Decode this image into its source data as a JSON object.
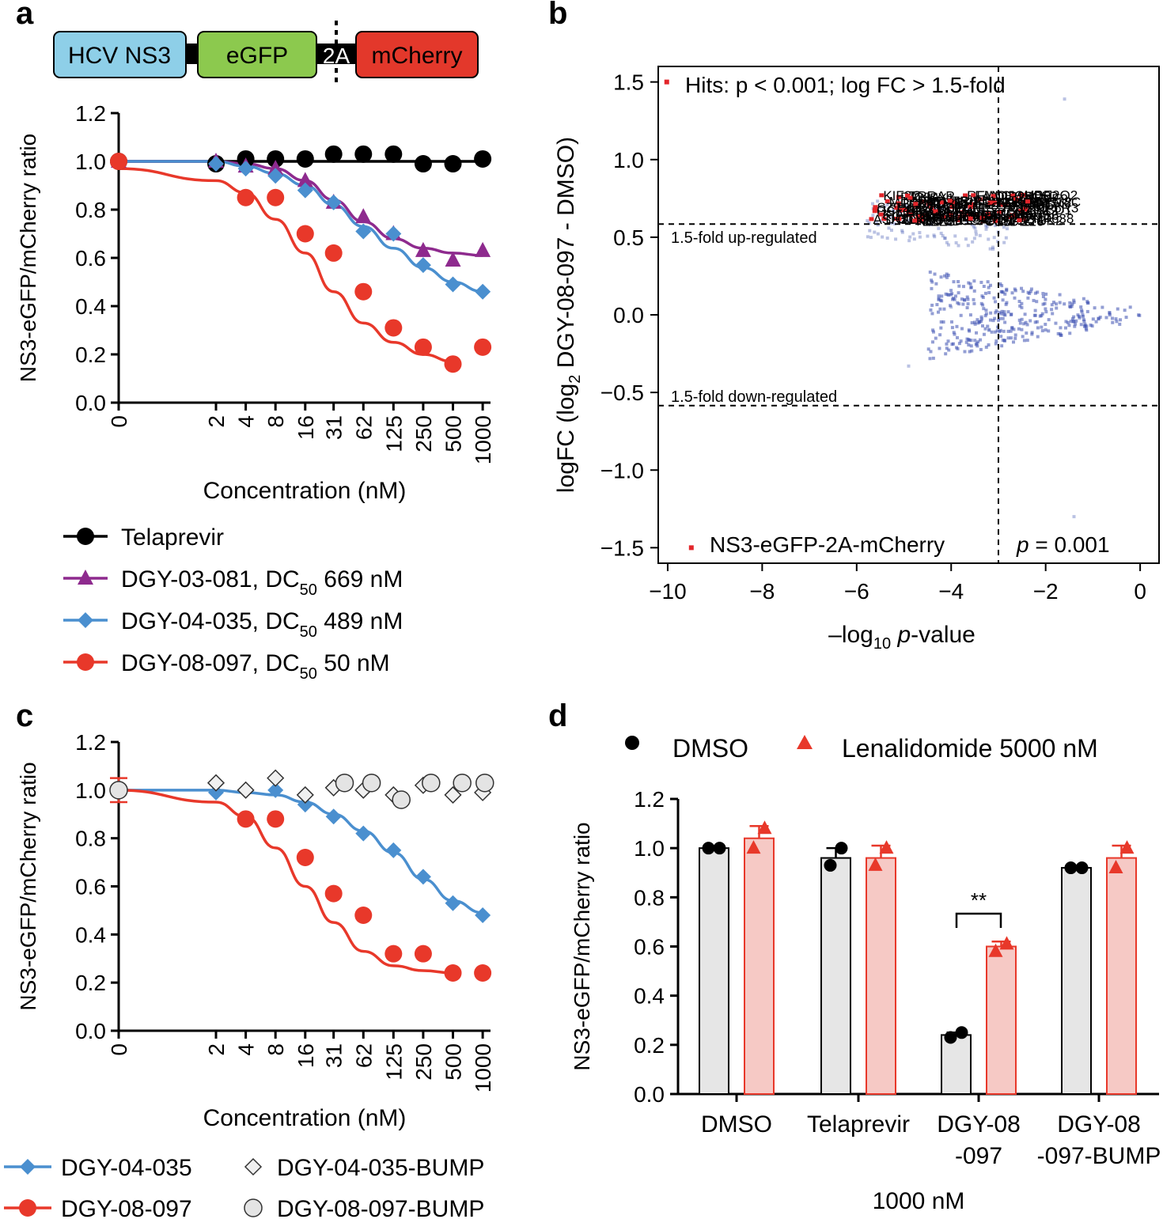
{
  "figure": {
    "panel_labels": [
      "a",
      "b",
      "c",
      "d"
    ]
  },
  "colors": {
    "black": "#000000",
    "purple": "#8e2a8e",
    "blue": "#4a8fcf",
    "red": "#e8382a",
    "grey_fill": "#e6e6e6",
    "pink_fill": "#f6c9c5",
    "hcv_box": "#8ecfe8",
    "egfp_box": "#8cc94e",
    "mcherry_box": "#e3382b",
    "volcano_blue": "#3a4fb0",
    "volcano_red": "#e3262b"
  },
  "construct": {
    "boxes": [
      {
        "label": "HCV NS3",
        "color": "#8ecfe8"
      },
      {
        "label": "eGFP",
        "color": "#8cc94e"
      },
      {
        "label": "2A",
        "color": "#000000"
      },
      {
        "label": "mCherry",
        "color": "#e3382b"
      }
    ]
  },
  "chart_data": [
    {
      "id": "a",
      "type": "line",
      "ylabel": "NS3-eGFP/mCherry ratio",
      "xlabel": "Concentration (nM)",
      "ylim": [
        0,
        1.2
      ],
      "yticks": [
        "0.0",
        "0.2",
        "0.4",
        "0.6",
        "0.8",
        "1.0",
        "1.2"
      ],
      "categories": [
        "0",
        "2",
        "4",
        "8",
        "16",
        "31",
        "62",
        "125",
        "250",
        "500",
        "1000"
      ],
      "series": [
        {
          "name": "Telaprevir",
          "marker": "circle",
          "color": "#000000",
          "x": [
            "0",
            "2",
            "4",
            "8",
            "16",
            "31",
            "62",
            "125",
            "250",
            "500",
            "1000"
          ],
          "values": [
            1.0,
            0.99,
            1.01,
            1.01,
            1.01,
            1.03,
            1.03,
            1.03,
            0.99,
            0.99,
            1.01
          ],
          "fit": [
            1.0,
            1.0,
            1.0,
            1.0,
            1.0,
            1.0,
            1.0,
            1.0,
            1.0,
            1.0,
            1.0
          ]
        },
        {
          "name": "DGY-03-081, DC50 669 nM",
          "marker": "triangle",
          "color": "#8e2a8e",
          "x": [
            "0",
            "2",
            "4",
            "8",
            "16",
            "31",
            "62",
            "125",
            "250",
            "500",
            "1000"
          ],
          "values": [
            1.0,
            1.0,
            0.98,
            0.97,
            0.92,
            0.83,
            0.77,
            0.7,
            0.63,
            0.59,
            0.63
          ],
          "fit": [
            1.0,
            1.0,
            0.99,
            0.97,
            0.92,
            0.84,
            0.75,
            0.68,
            0.64,
            0.62,
            0.61
          ]
        },
        {
          "name": "DGY-04-035, DC50 489 nM",
          "marker": "diamond",
          "color": "#4a8fcf",
          "x": [
            "0",
            "2",
            "4",
            "8",
            "16",
            "31",
            "62",
            "125",
            "250",
            "500",
            "1000"
          ],
          "values": [
            1.0,
            0.99,
            0.97,
            0.94,
            0.88,
            0.83,
            0.71,
            0.7,
            0.57,
            0.49,
            0.46
          ],
          "fit": [
            1.0,
            1.0,
            0.98,
            0.95,
            0.9,
            0.82,
            0.73,
            0.64,
            0.56,
            0.5,
            0.46
          ]
        },
        {
          "name": "DGY-08-097, DC50 50 nM",
          "marker": "circle",
          "color": "#e8382a",
          "x": [
            "0",
            "4",
            "8",
            "16",
            "31",
            "62",
            "125",
            "250",
            "500",
            "1000"
          ],
          "values": [
            1.0,
            0.85,
            0.85,
            0.7,
            0.62,
            0.46,
            0.31,
            0.23,
            0.16,
            0.23
          ],
          "fit": [
            0.97,
            0.92,
            0.87,
            0.76,
            0.62,
            0.46,
            0.33,
            0.25,
            0.2,
            0.17
          ]
        }
      ],
      "legend": {
        "items": [
          {
            "name": "Telaprevir",
            "sub": "",
            "tail": ""
          },
          {
            "name": "DGY-03-081, DC",
            "sub": "50",
            "tail": " 669 nM"
          },
          {
            "name": "DGY-04-035, DC",
            "sub": "50",
            "tail": " 489 nM"
          },
          {
            "name": "DGY-08-097, DC",
            "sub": "50",
            "tail": " 50 nM"
          }
        ]
      }
    },
    {
      "id": "b",
      "type": "scatter",
      "ylabel_parts": [
        "logFC (log",
        "2",
        " DGY-08-097 - DMSO)"
      ],
      "xlabel_parts": [
        "–log",
        "10",
        " ",
        "p",
        "-value"
      ],
      "xlim": [
        -10.2,
        0.4
      ],
      "ylim": [
        -1.6,
        1.6
      ],
      "xticks": [
        "−10",
        "−8",
        "−6",
        "−4",
        "−2",
        "0"
      ],
      "xtick_values": [
        -10,
        -8,
        -6,
        -4,
        -2,
        0
      ],
      "yticks": [
        "−1.5",
        "−1.0",
        "−0.5",
        "0.0",
        "0.5",
        "1.0",
        "1.5"
      ],
      "ytick_values": [
        -1.5,
        -1.0,
        -0.5,
        0.0,
        0.5,
        1.0,
        1.5
      ],
      "thresholds": {
        "up": 0.585,
        "down": -0.585,
        "p_line": -3.0
      },
      "annotations": {
        "hits": "Hits: p < 0.001; log FC > 1.5-fold",
        "up": "1.5-fold up-regulated",
        "down": "1.5-fold down-regulated",
        "target": "NS3-eGFP-2A-mCherry",
        "p_label_italic": "p",
        "p_label_rest": " = 0.001"
      },
      "hit_labels": [
        "NS3",
        "GSK3",
        "TMEM65",
        "SRBD1",
        "WBP4",
        "ZMYM2",
        "RAPGEF1",
        "CEBPZ",
        "GAN",
        "STAT2",
        "FBXL3",
        "DTHD1",
        "CYR61",
        "RBM45",
        "MTRF1",
        "PCM1",
        "GTF2H2",
        "USP34",
        "ZZZ3",
        "SPG11",
        "SC5D",
        "LIN54",
        "RIC8A",
        "PRMT3",
        "HELZ",
        "WDR26",
        "KIF2C",
        "HIVEP1",
        "RFWD3",
        "ZNF638",
        "TRRAP",
        "UBE2Q2",
        "WIZ",
        "CCAR1",
        "NFXL1",
        "GCFC2",
        "PPP6R3",
        "EIF2AK4",
        "HAUS6",
        "AFTPH",
        "FANCM",
        "KIAA1109",
        "FRYL",
        "ARFGEF2",
        "ZFYVE9",
        "STRN3",
        "MDN1",
        "ATRN",
        "SEC16A",
        "ZNFX1",
        "CHD9",
        "CEP350",
        "DIP2B",
        "EP400",
        "SPTLC2",
        "TRIP11",
        "CENPF",
        "NIPBL",
        "ANKRD17",
        "HECTD1",
        "VPS13C",
        "TTBK2",
        "UBR4",
        "HUWE1",
        "MYCBP2",
        "ZC3H4",
        "DOCK7",
        "BIRC6",
        "KMT2D",
        "SETD2",
        "ASH1L",
        "SZT2"
      ]
    },
    {
      "id": "c",
      "type": "line",
      "ylabel": "NS3-eGFP/mCherry ratio",
      "xlabel": "Concentration (nM)",
      "ylim": [
        0,
        1.2
      ],
      "yticks": [
        "0.0",
        "0.2",
        "0.4",
        "0.6",
        "0.8",
        "1.0",
        "1.2"
      ],
      "categories": [
        "0",
        "2",
        "4",
        "8",
        "16",
        "31",
        "62",
        "125",
        "250",
        "500",
        "1000"
      ],
      "series": [
        {
          "name": "DGY-04-035",
          "marker": "diamond",
          "color": "#4a8fcf",
          "x": [
            "0",
            "2",
            "4",
            "8",
            "16",
            "31",
            "62",
            "125",
            "250",
            "500",
            "1000"
          ],
          "values": [
            1.0,
            0.99,
            1.0,
            1.0,
            0.94,
            0.89,
            0.82,
            0.75,
            0.64,
            0.53,
            0.48
          ],
          "fit": [
            1.0,
            1.0,
            0.99,
            0.98,
            0.95,
            0.9,
            0.83,
            0.74,
            0.63,
            0.54,
            0.49
          ]
        },
        {
          "name": "DGY-08-097",
          "marker": "circle",
          "color": "#e8382a",
          "x": [
            "0",
            "4",
            "8",
            "16",
            "31",
            "62",
            "125",
            "250",
            "500",
            "1000"
          ],
          "values": [
            1.0,
            0.88,
            0.88,
            0.72,
            0.57,
            0.48,
            0.32,
            0.32,
            0.24,
            0.24
          ],
          "fit": [
            1.0,
            0.95,
            0.89,
            0.76,
            0.6,
            0.45,
            0.33,
            0.27,
            0.25,
            0.24
          ]
        },
        {
          "name": "DGY-04-035-BUMP",
          "marker": "diamond-open",
          "color": "#000000",
          "x": [
            "0",
            "2",
            "4",
            "8",
            "16",
            "31",
            "62",
            "125",
            "250",
            "500",
            "1000"
          ],
          "values": [
            1.0,
            1.03,
            1.0,
            1.05,
            0.98,
            1.01,
            1.0,
            0.98,
            1.02,
            0.98,
            0.99
          ]
        },
        {
          "name": "DGY-08-097-BUMP",
          "marker": "circle-open",
          "color": "#000000",
          "x": [
            "0",
            "40",
            "75",
            "150",
            "300",
            "620",
            "1050"
          ],
          "values": [
            1.0,
            1.03,
            1.03,
            0.96,
            1.03,
            1.03,
            1.03
          ]
        }
      ],
      "error_bar": {
        "x": "0",
        "low": 0.95,
        "high": 1.05
      }
    },
    {
      "id": "d",
      "type": "bar",
      "ylabel": "NS3-eGFP/mCherry ratio",
      "ylim": [
        0,
        1.2
      ],
      "yticks": [
        "0.0",
        "0.2",
        "0.4",
        "0.6",
        "0.8",
        "1.0",
        "1.2"
      ],
      "categories": [
        "DMSO",
        "Telaprevir",
        "DGY-08\n-097",
        "DGY-08\n-097-BUMP"
      ],
      "category_lines": [
        [
          "DMSO"
        ],
        [
          "Telaprevir"
        ],
        [
          "DGY-08",
          "-097"
        ],
        [
          "DGY-08",
          "-097-BUMP"
        ]
      ],
      "xlabel": "1000 nM",
      "legend": [
        "DMSO",
        "Lenalidomide 5000 nM"
      ],
      "series": [
        {
          "name": "DMSO",
          "color": "#000000",
          "fill": "#e6e6e6",
          "values": [
            1.0,
            0.96,
            0.24,
            0.92
          ],
          "points": [
            [
              1.0,
              1.0
            ],
            [
              0.93,
              1.0
            ],
            [
              0.23,
              0.25
            ],
            [
              0.92,
              0.92
            ]
          ],
          "err": [
            0.0,
            0.04,
            0.01,
            0.0
          ]
        },
        {
          "name": "Lenalidomide 5000 nM",
          "color": "#e8382a",
          "fill": "#f6c9c5",
          "values": [
            1.04,
            0.96,
            0.6,
            0.96
          ],
          "points": [
            [
              1.0,
              1.08
            ],
            [
              0.93,
              1.0
            ],
            [
              0.58,
              0.61
            ],
            [
              0.92,
              1.0
            ]
          ],
          "err": [
            0.05,
            0.05,
            0.02,
            0.05
          ]
        }
      ],
      "significance": {
        "label": "**",
        "category_index": 2
      }
    }
  ]
}
